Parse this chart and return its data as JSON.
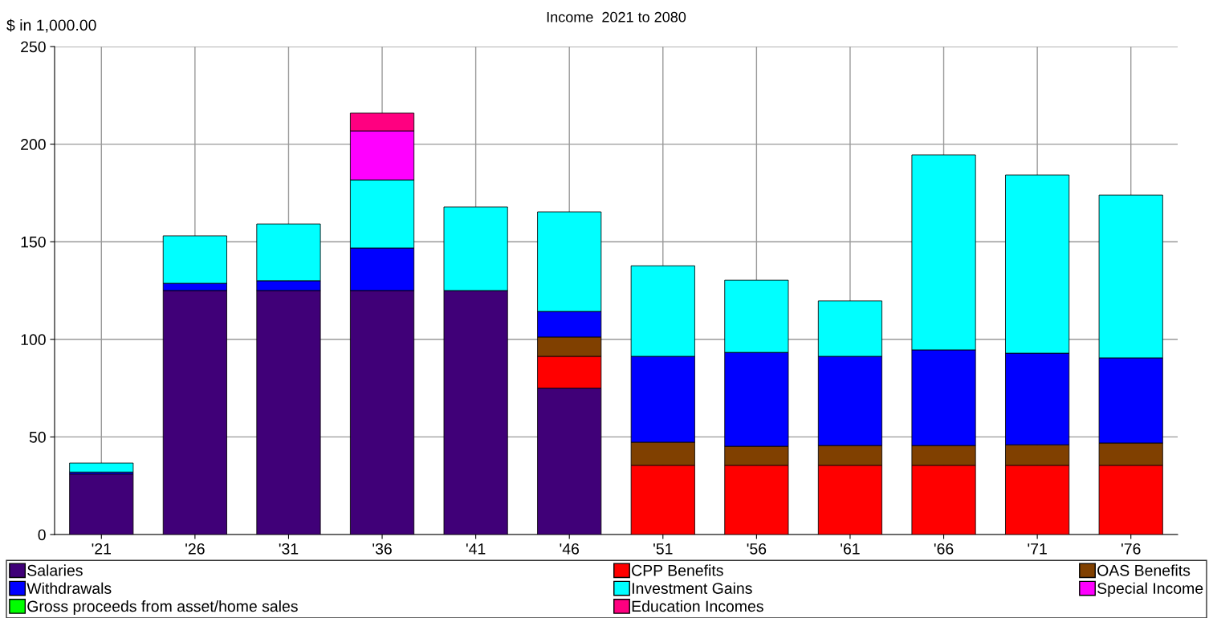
{
  "chart_data": {
    "type": "bar",
    "title": "Income  2021 to 2080",
    "ylabel": "$ in 1,000.00",
    "categories": [
      "'21",
      "'26",
      "'31",
      "'36",
      "'41",
      "'46",
      "'51",
      "'56",
      "'61",
      "'66",
      "'71",
      "'76"
    ],
    "stacked": true,
    "ylim": [
      0,
      250
    ],
    "yticks": [
      0,
      50,
      100,
      150,
      200,
      250
    ],
    "grid": true,
    "legend": "bottom",
    "series": [
      {
        "name": "Salaries",
        "color": "#400078",
        "values": [
          31,
          125,
          125,
          125,
          125,
          75,
          null,
          null,
          null,
          null,
          null,
          null
        ]
      },
      {
        "name": "CPP Benefits",
        "color": "#ff0000",
        "values": [
          null,
          null,
          null,
          null,
          null,
          16.3,
          35.5,
          35.5,
          35.5,
          35.5,
          35.5,
          35.5
        ]
      },
      {
        "name": "OAS Benefits",
        "color": "#804000",
        "values": [
          null,
          null,
          null,
          null,
          null,
          9.9,
          11.8,
          9.7,
          10.1,
          10.1,
          10.5,
          11.4
        ]
      },
      {
        "name": "Withdrawals",
        "color": "#0000ff",
        "values": [
          1,
          3.7,
          5,
          21.8,
          null,
          13.1,
          44,
          48.1,
          45.7,
          49,
          46.9,
          43.6
        ]
      },
      {
        "name": "Investment Gains",
        "color": "#00ffff",
        "values": [
          4.6,
          24.3,
          29.1,
          34.9,
          42.8,
          51,
          46.4,
          37,
          28.4,
          99.9,
          91.3,
          83.4
        ]
      },
      {
        "name": "Special Income",
        "color": "#ff00ff",
        "values": [
          null,
          null,
          null,
          25.1,
          null,
          null,
          null,
          null,
          null,
          null,
          null,
          null
        ]
      },
      {
        "name": "Gross proceeds from asset/home sales",
        "color": "#00ff00",
        "values": [
          null,
          null,
          null,
          null,
          null,
          null,
          null,
          null,
          null,
          null,
          null,
          null
        ]
      },
      {
        "name": "Education Incomes",
        "color": "#ff0080",
        "values": [
          null,
          null,
          null,
          9.1,
          null,
          null,
          null,
          null,
          null,
          null,
          null,
          null
        ]
      }
    ]
  }
}
